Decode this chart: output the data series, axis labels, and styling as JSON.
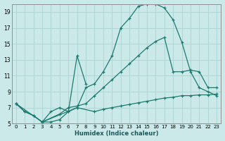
{
  "xlabel": "Humidex (Indice chaleur)",
  "bg_color": "#cce9ea",
  "grid_color": "#b0d5d5",
  "line_color": "#1a7a6e",
  "xlim": [
    -0.5,
    23.5
  ],
  "ylim": [
    5,
    20
  ],
  "yticks": [
    5,
    7,
    9,
    11,
    13,
    15,
    17,
    19
  ],
  "xticks": [
    0,
    1,
    2,
    3,
    4,
    5,
    6,
    7,
    8,
    9,
    10,
    11,
    12,
    13,
    14,
    15,
    16,
    17,
    18,
    19,
    20,
    21,
    22,
    23
  ],
  "line1_x": [
    0,
    1,
    2,
    3,
    4,
    5,
    6,
    7,
    8,
    9,
    10,
    11,
    12,
    13,
    14,
    15,
    16,
    17,
    18,
    19,
    20,
    21,
    22,
    23
  ],
  "line1_y": [
    7.5,
    6.5,
    6.0,
    5.2,
    5.2,
    5.5,
    6.5,
    7.0,
    9.5,
    10.0,
    11.5,
    13.5,
    17.0,
    18.2,
    19.7,
    20.0,
    20.0,
    19.5,
    18.0,
    15.2,
    11.5,
    9.5,
    9.0,
    8.5
  ],
  "line2_x": [
    0,
    1,
    2,
    3,
    4,
    5,
    6,
    7,
    8
  ],
  "line2_y": [
    7.5,
    6.5,
    6.0,
    5.2,
    6.5,
    7.0,
    6.5,
    13.5,
    10.0
  ],
  "line3_x": [
    3,
    5,
    6,
    7,
    8,
    9,
    10,
    11,
    12,
    13,
    14,
    15,
    16,
    17,
    18,
    19,
    20,
    21,
    22,
    23
  ],
  "line3_y": [
    5.2,
    6.2,
    7.0,
    7.2,
    7.5,
    8.5,
    9.5,
    10.5,
    11.5,
    12.5,
    13.5,
    14.5,
    15.3,
    15.8,
    11.5,
    11.5,
    11.7,
    11.5,
    9.5,
    9.5
  ],
  "line4_x": [
    0,
    3,
    7,
    9,
    10,
    11,
    12,
    13,
    14,
    15,
    16,
    17,
    18,
    19,
    20,
    21,
    22,
    23
  ],
  "line4_y": [
    7.5,
    5.2,
    7.0,
    6.5,
    6.8,
    7.0,
    7.2,
    7.4,
    7.6,
    7.8,
    8.0,
    8.2,
    8.3,
    8.5,
    8.5,
    8.6,
    8.6,
    8.7
  ]
}
